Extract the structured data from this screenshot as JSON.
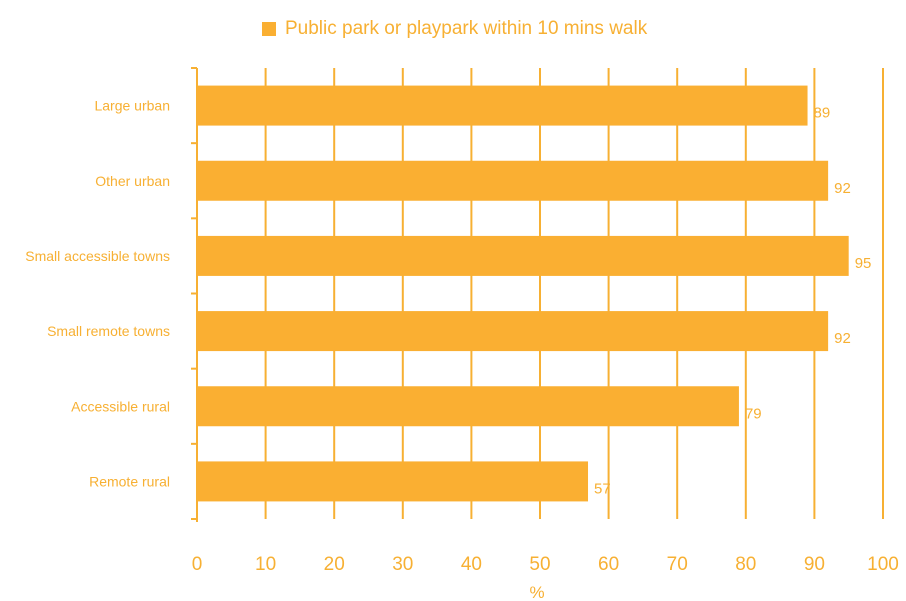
{
  "colors": {
    "bar": "#FAAF32",
    "text": "#F7B033",
    "grid": "#F7B033",
    "background": "#FFFFFF"
  },
  "legend": {
    "label": "Public park or playpark within 10 mins walk",
    "placement": "top-center"
  },
  "chart_data": {
    "type": "bar",
    "orientation": "horizontal",
    "categories": [
      "Large urban",
      "Other urban",
      "Small accessible towns",
      "Small remote towns",
      "Accessible rural",
      "Remote rural"
    ],
    "series": [
      {
        "name": "Public park or playpark within 10 mins walk",
        "values": [
          89,
          92,
          95,
          92,
          79,
          57
        ]
      }
    ],
    "xlabel": "%",
    "ylabel": "",
    "title": "",
    "xlim": [
      0,
      100
    ],
    "xticks": [
      "0",
      "10",
      "20",
      "30",
      "40",
      "50",
      "60",
      "70",
      "80",
      "90",
      "100"
    ],
    "grid": true,
    "data_labels": true
  }
}
